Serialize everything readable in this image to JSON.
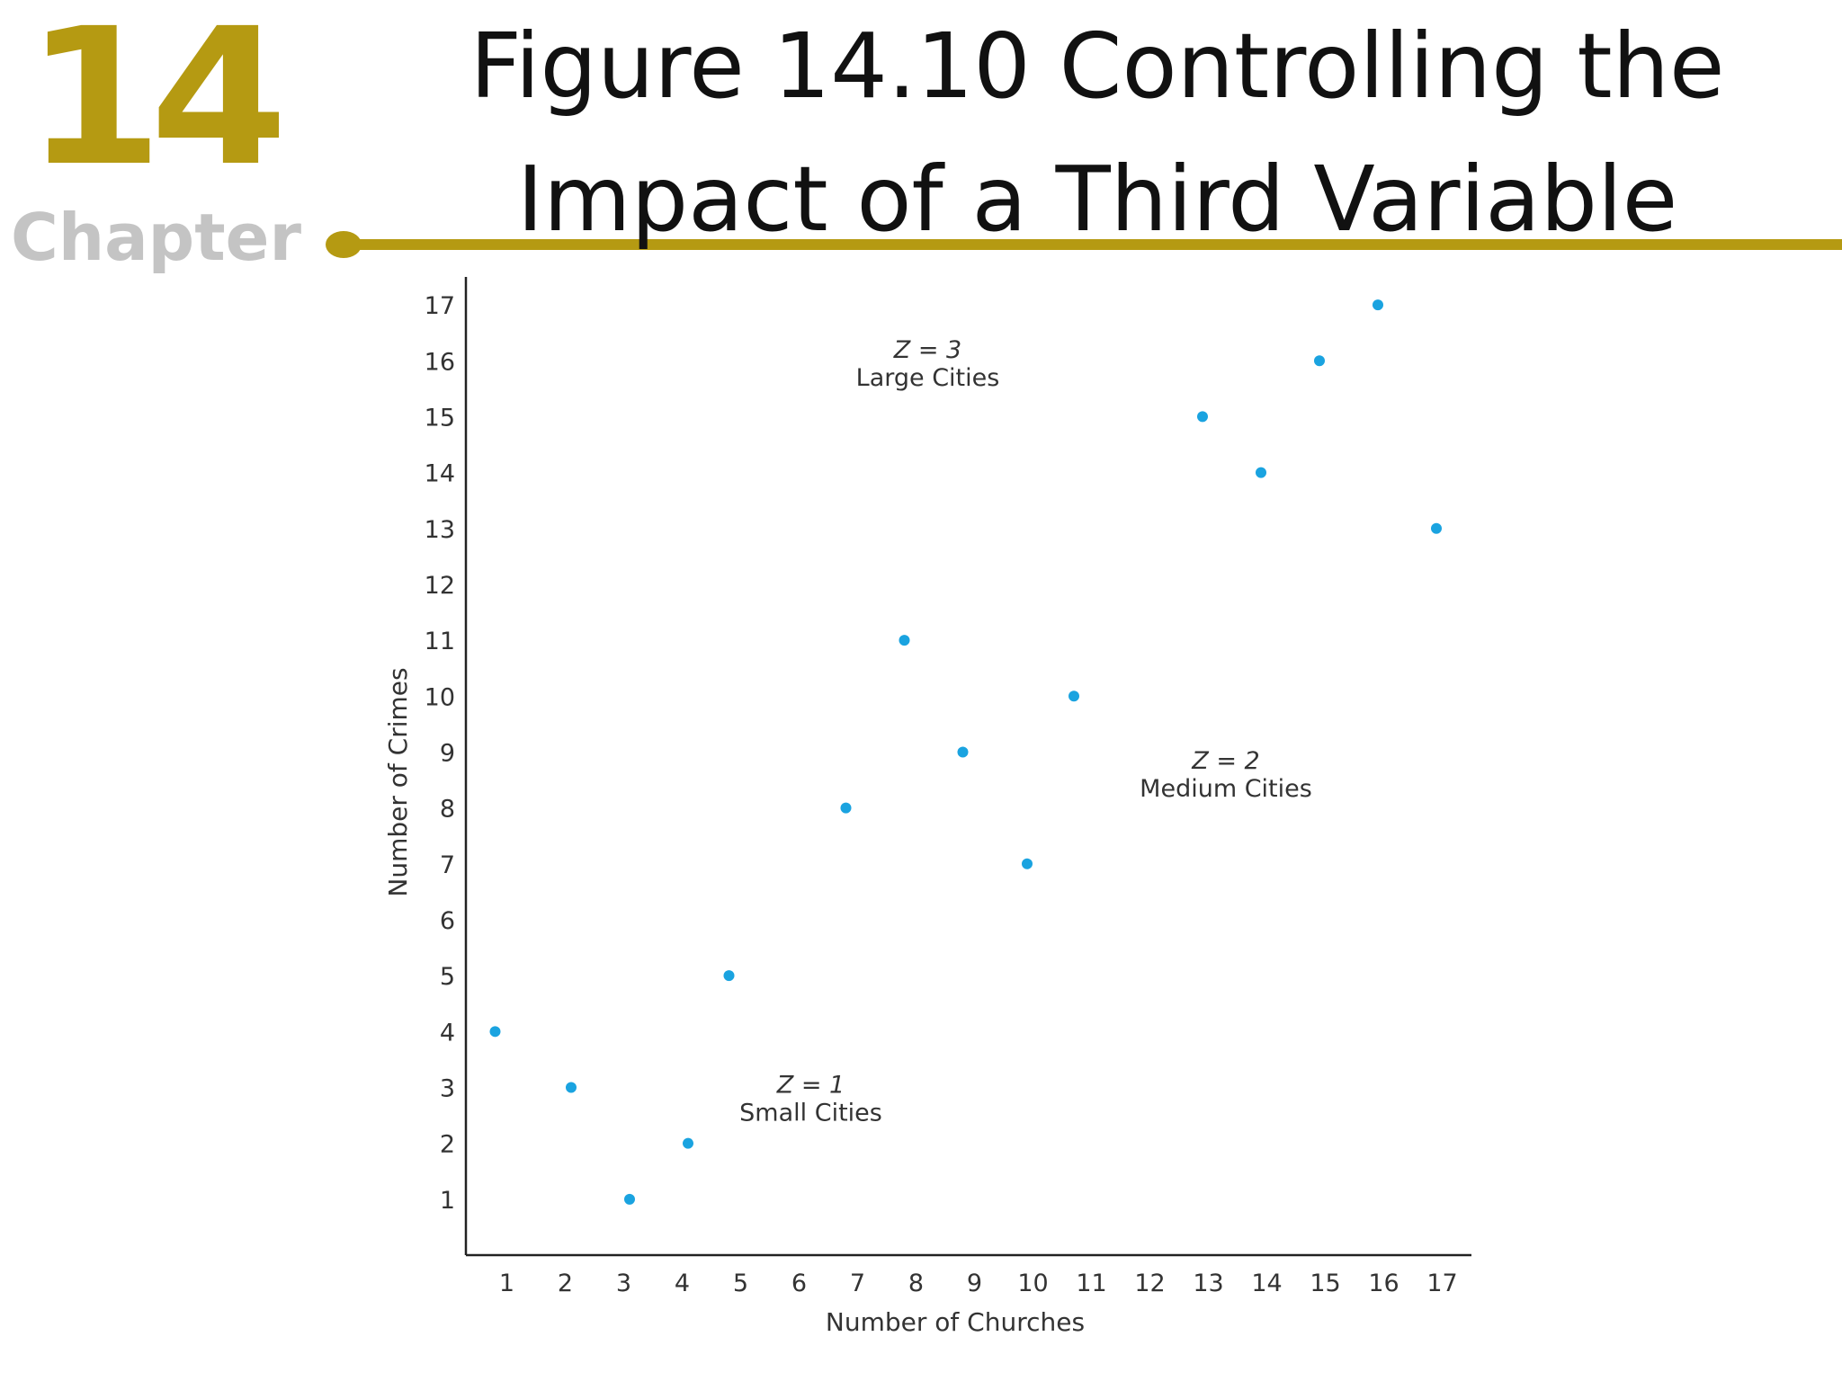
{
  "slide": {
    "chapter_number": "14",
    "chapter_label": "Chapter",
    "title_line1": "Figure 14.10   Controlling the",
    "title_line2": "Impact of a Third Variable"
  },
  "colors": {
    "accent": "#b59a12",
    "point": "#1aa3e0",
    "axis": "#222222"
  },
  "chart_data": {
    "type": "scatter",
    "xlabel": "Number of Churches",
    "ylabel": "Number of Crimes",
    "xlim": [
      0.3,
      17.5
    ],
    "ylim": [
      0,
      17.5
    ],
    "xticks": [
      1,
      2,
      3,
      4,
      5,
      6,
      7,
      8,
      9,
      10,
      11,
      12,
      13,
      14,
      15,
      16,
      17
    ],
    "yticks": [
      1,
      2,
      3,
      4,
      5,
      6,
      7,
      8,
      9,
      10,
      11,
      12,
      13,
      14,
      15,
      16,
      17
    ],
    "grid": false,
    "points": [
      {
        "x": 0.8,
        "y": 4
      },
      {
        "x": 2.1,
        "y": 3
      },
      {
        "x": 3.1,
        "y": 1
      },
      {
        "x": 4.1,
        "y": 2
      },
      {
        "x": 4.8,
        "y": 5
      },
      {
        "x": 6.8,
        "y": 8
      },
      {
        "x": 7.8,
        "y": 11
      },
      {
        "x": 8.8,
        "y": 9
      },
      {
        "x": 9.9,
        "y": 7
      },
      {
        "x": 10.7,
        "y": 10
      },
      {
        "x": 12.9,
        "y": 15
      },
      {
        "x": 13.9,
        "y": 14
      },
      {
        "x": 14.9,
        "y": 16
      },
      {
        "x": 15.9,
        "y": 17
      },
      {
        "x": 16.9,
        "y": 13
      }
    ],
    "annotations": [
      {
        "line1": "Z = 3",
        "line2": "Large Cities",
        "x": 8.2,
        "y": 16.05
      },
      {
        "line1": "Z = 2",
        "line2": "Medium Cities",
        "x": 13.3,
        "y": 8.7
      },
      {
        "line1": "Z = 1",
        "line2": "Small Cities",
        "x": 6.2,
        "y": 2.9
      }
    ]
  }
}
